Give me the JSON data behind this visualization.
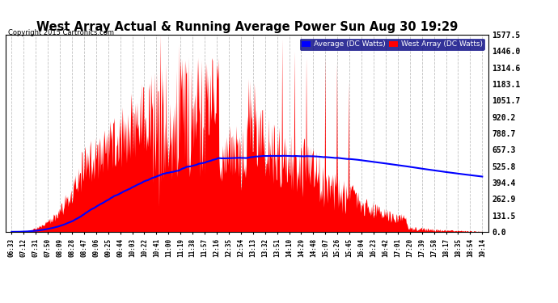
{
  "title": "West Array Actual & Running Average Power Sun Aug 30 19:29",
  "copyright": "Copyright 2015 Cartronics.com",
  "ylabel_right_values": [
    1577.5,
    1446.0,
    1314.6,
    1183.1,
    1051.7,
    920.2,
    788.7,
    657.3,
    525.8,
    394.4,
    262.9,
    131.5,
    0.0
  ],
  "ymax": 1577.5,
  "ymin": 0.0,
  "legend_labels": [
    "Average (DC Watts)",
    "West Array (DC Watts)"
  ],
  "legend_colors": [
    "blue",
    "red"
  ],
  "background_color": "#ffffff",
  "grid_color": "#bbbbbb",
  "fill_color": "red",
  "line_color": "blue",
  "x_tick_labels": [
    "06:33",
    "07:12",
    "07:31",
    "07:50",
    "08:09",
    "08:28",
    "08:47",
    "09:06",
    "09:25",
    "09:44",
    "10:03",
    "10:22",
    "10:41",
    "11:00",
    "11:19",
    "11:38",
    "11:57",
    "12:16",
    "12:35",
    "12:54",
    "13:13",
    "13:32",
    "13:51",
    "14:10",
    "14:29",
    "14:48",
    "15:07",
    "15:26",
    "15:45",
    "16:04",
    "16:23",
    "16:42",
    "17:01",
    "17:20",
    "17:39",
    "17:58",
    "18:17",
    "18:35",
    "18:54",
    "19:14"
  ]
}
